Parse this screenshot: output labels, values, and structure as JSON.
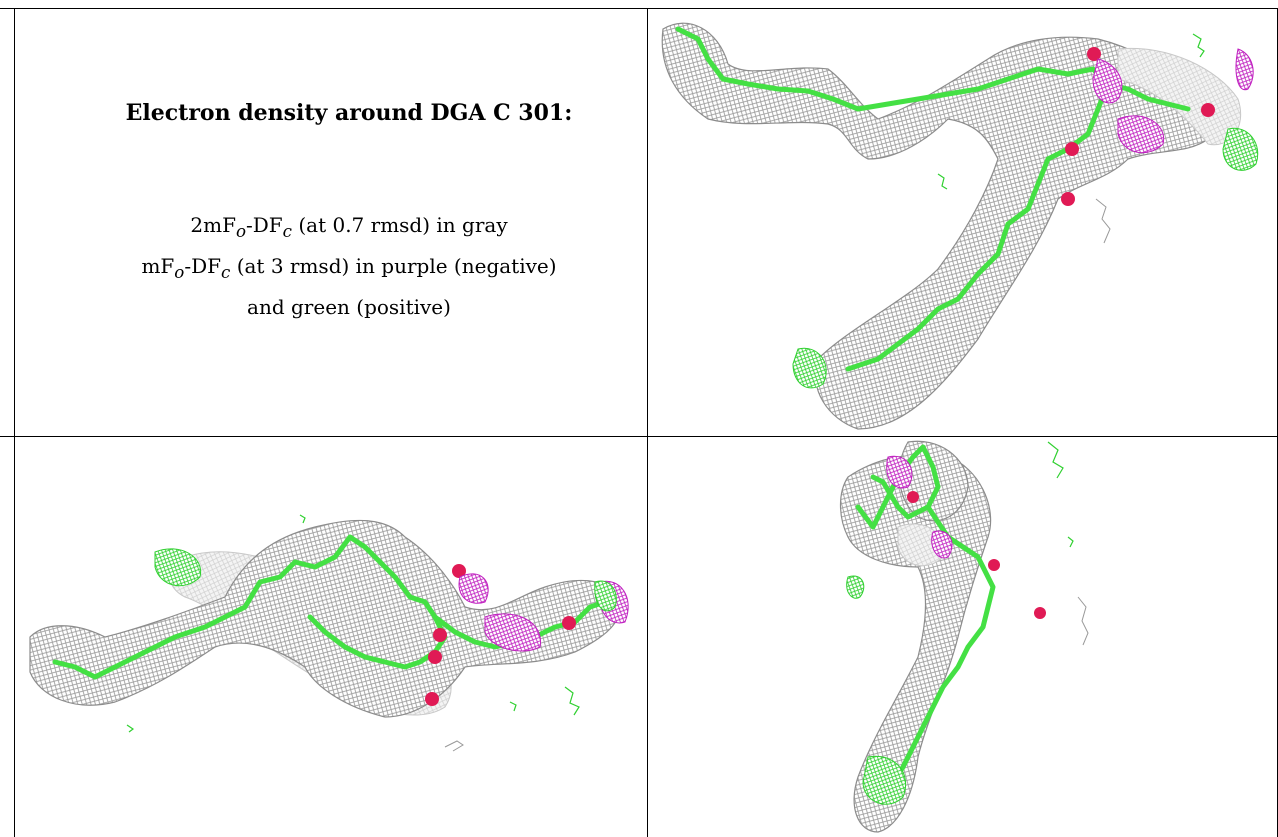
{
  "caption": {
    "title": "Electron density around DGA C 301:",
    "line1_prefix": "2mF",
    "line1_sub1": "o",
    "line1_mid": "-DF",
    "line1_sub2": "c",
    "line1_suffix": " (at 0.7 rmsd) in gray",
    "line2_prefix": "mF",
    "line2_sub1": "o",
    "line2_mid": "-DF",
    "line2_sub2": "c",
    "line2_suffix": " (at 3 rmsd) in purple (negative)",
    "line3": "and green (positive)"
  },
  "colors": {
    "gray_mesh": "#8c8c8c",
    "negative_density": "#c020c0",
    "positive_density": "#30d030",
    "carbon": "#44e044",
    "oxygen": "#e01a55"
  }
}
